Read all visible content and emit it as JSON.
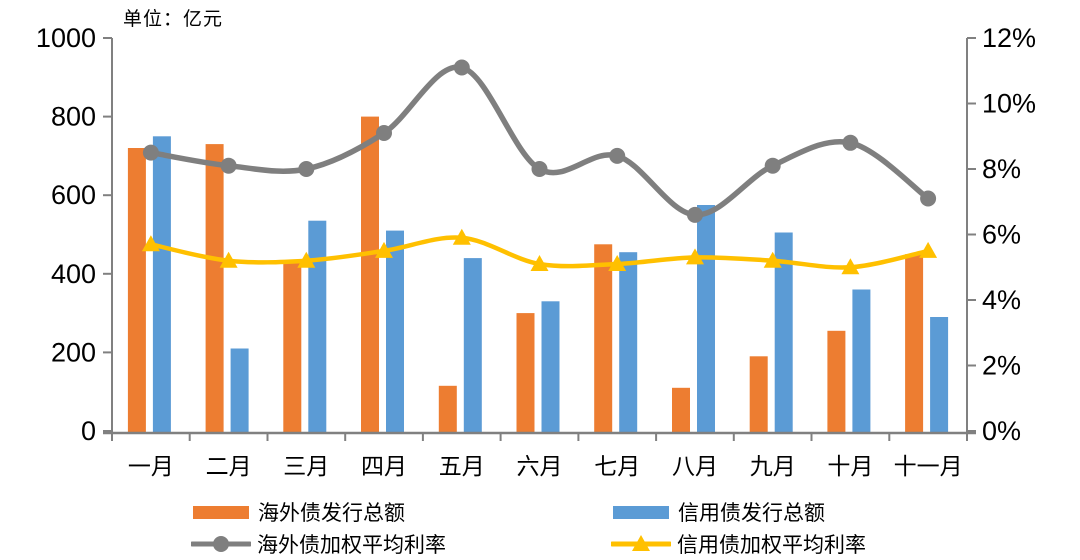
{
  "unit_label": "单位：亿元",
  "colors": {
    "orange": "#ED7D31",
    "blue": "#5B9BD5",
    "gray": "#7F7F7F",
    "yellow": "#FFC000",
    "axis": "#808080",
    "text": "#000000"
  },
  "chart_data": {
    "type": "bar",
    "subtype": "grouped-bar-with-lines-combo",
    "title": "",
    "unit_label": "单位：亿元",
    "categories": [
      "一月",
      "二月",
      "三月",
      "四月",
      "五月",
      "六月",
      "七月",
      "八月",
      "九月",
      "十月",
      "十一月"
    ],
    "series": [
      {
        "name": "海外债发行总额",
        "type": "bar",
        "axis": "left",
        "color_key": "orange",
        "values": [
          720,
          730,
          435,
          800,
          115,
          300,
          475,
          110,
          190,
          255,
          450
        ]
      },
      {
        "name": "信用债发行总额",
        "type": "bar",
        "axis": "left",
        "color_key": "blue",
        "values": [
          750,
          210,
          535,
          510,
          440,
          330,
          455,
          575,
          505,
          360,
          290
        ]
      },
      {
        "name": "海外债加权平均利率",
        "type": "line",
        "axis": "right",
        "color_key": "gray",
        "marker": "circle",
        "values": [
          8.5,
          8.1,
          8.0,
          9.1,
          11.1,
          8.0,
          8.4,
          6.6,
          8.1,
          8.8,
          7.1
        ]
      },
      {
        "name": "信用债加权平均利率",
        "type": "line",
        "axis": "right",
        "color_key": "yellow",
        "marker": "triangle",
        "values": [
          5.7,
          5.2,
          5.2,
          5.5,
          5.9,
          5.1,
          5.1,
          5.3,
          5.2,
          5.0,
          5.5
        ]
      }
    ],
    "left_axis": {
      "min": 0,
      "max": 1000,
      "ticks": [
        0,
        200,
        400,
        600,
        800,
        1000
      ]
    },
    "right_axis": {
      "min": 0,
      "max": 12,
      "tick_values": [
        0,
        2,
        4,
        6,
        8,
        10,
        12
      ],
      "tick_labels": [
        "0%",
        "2%",
        "4%",
        "6%",
        "8%",
        "10%",
        "12%"
      ]
    },
    "grid": false,
    "legend_position": "bottom"
  }
}
